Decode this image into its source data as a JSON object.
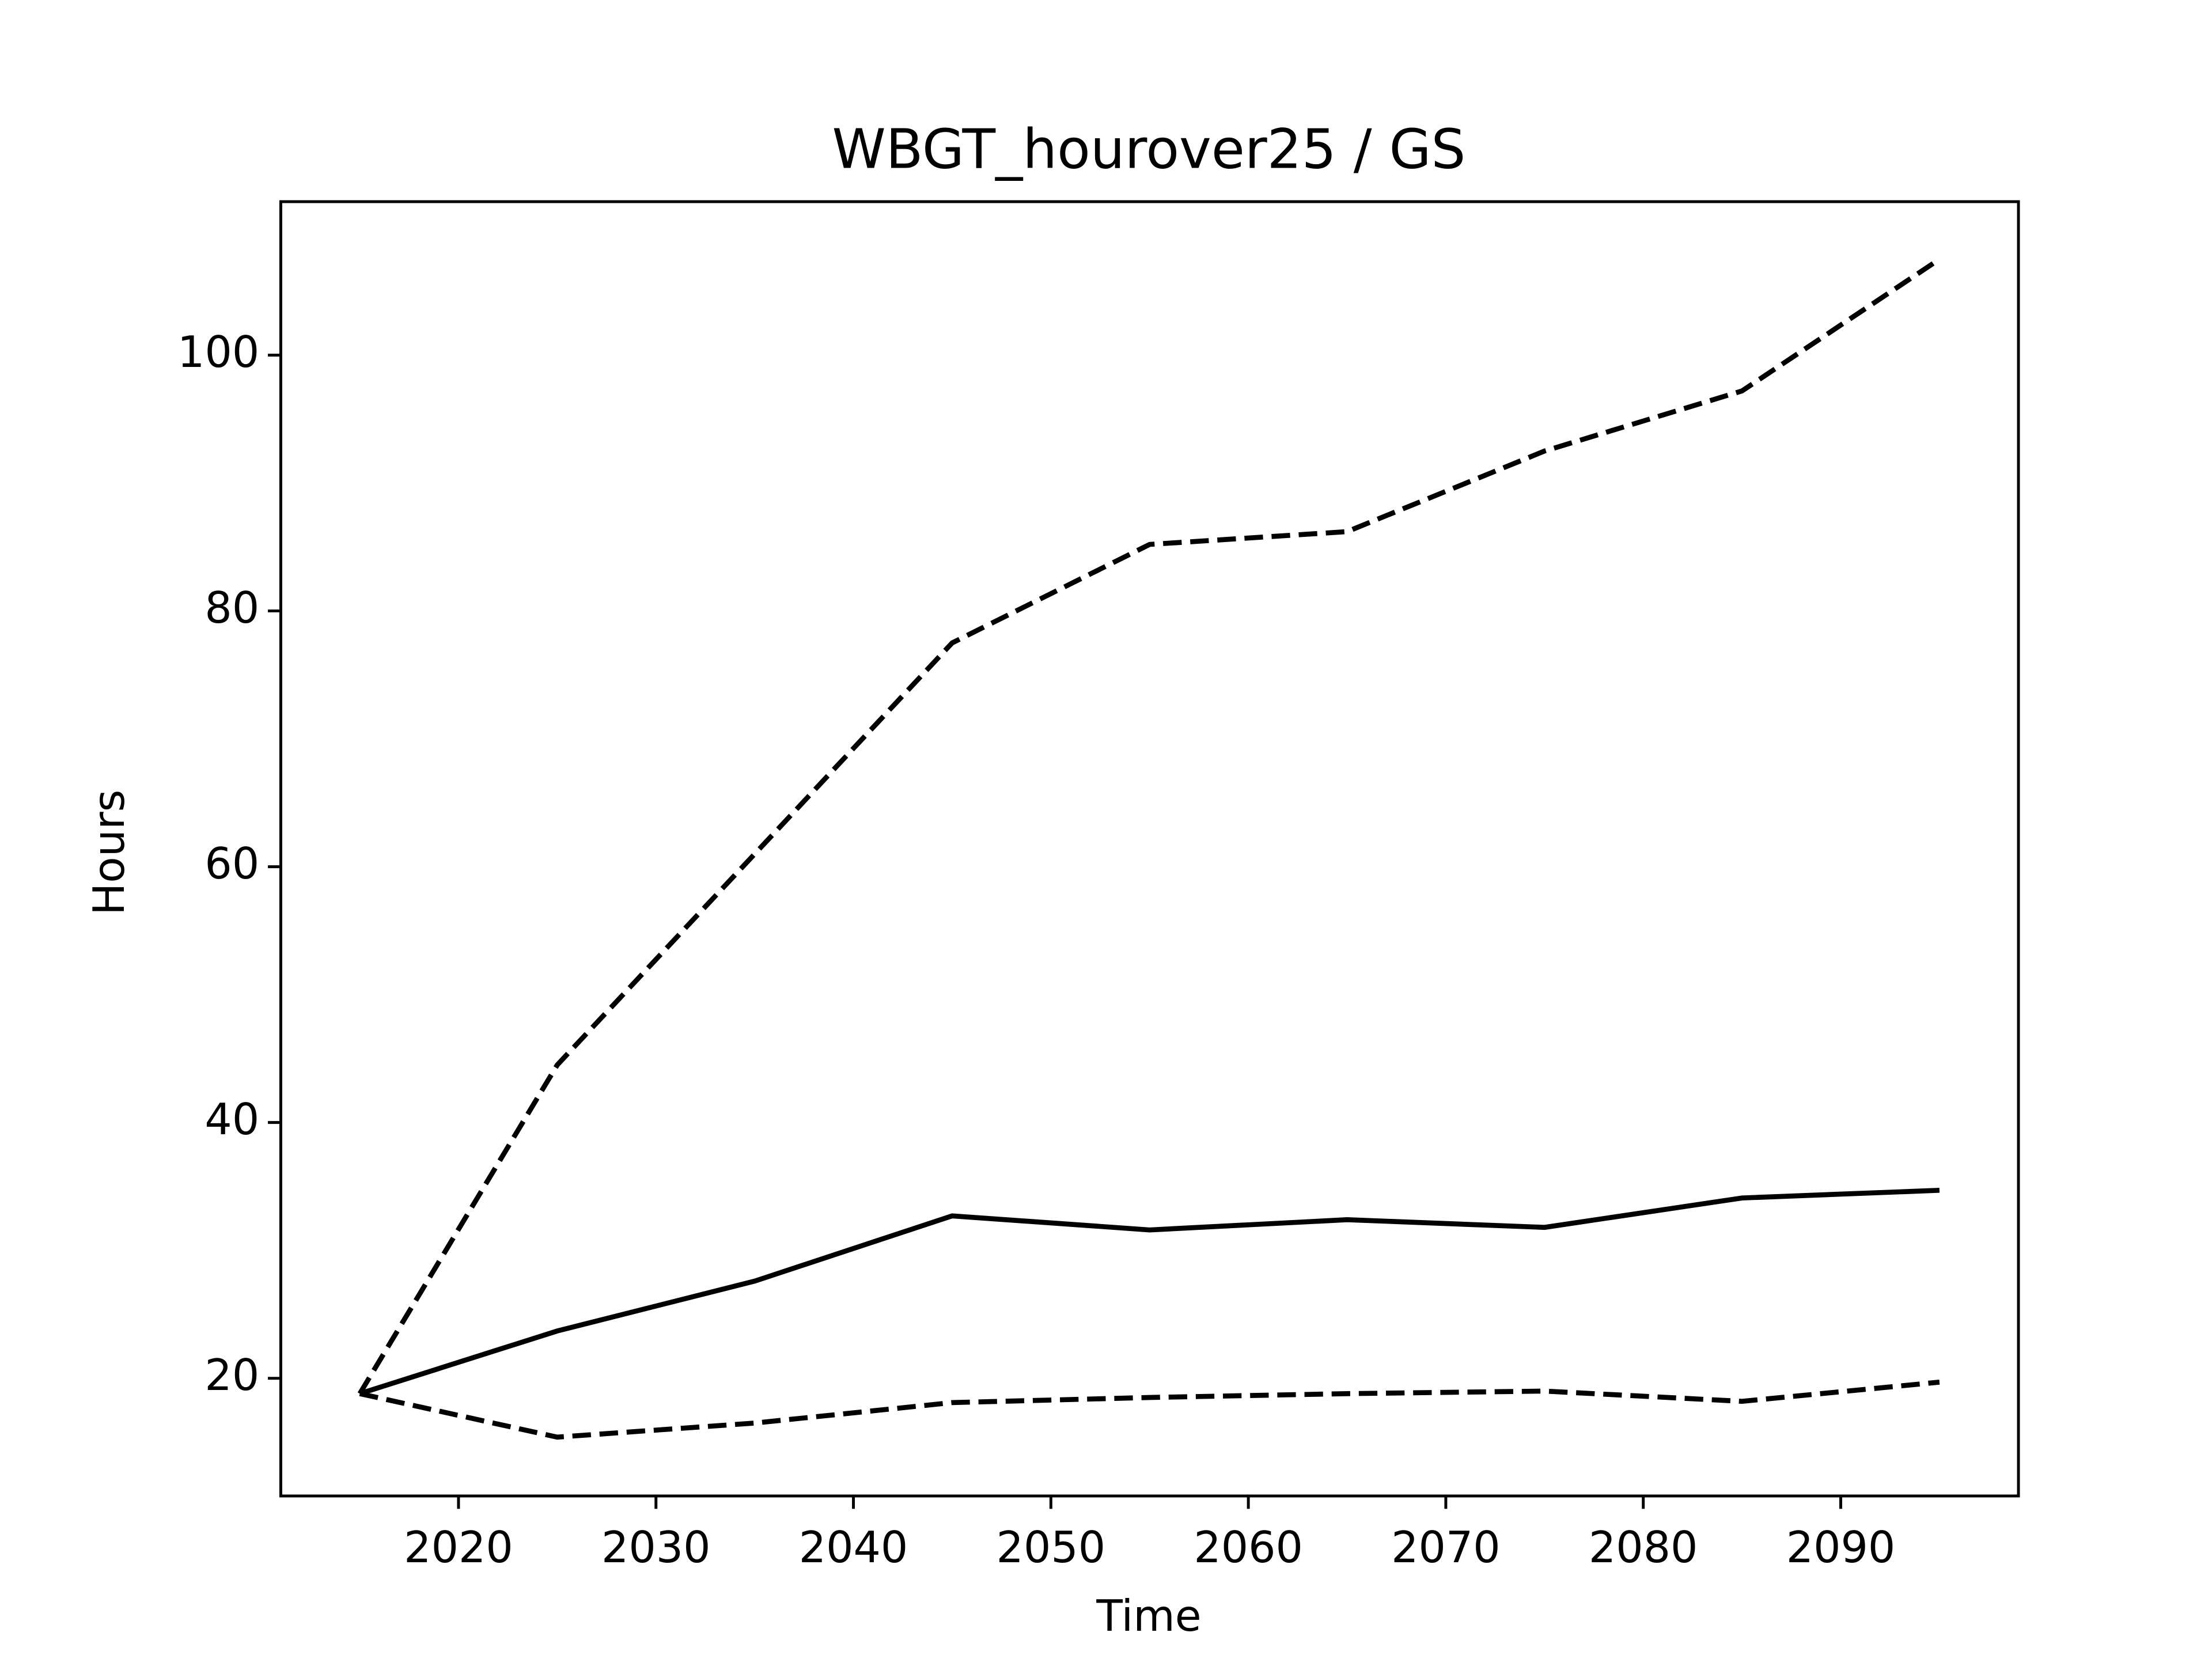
{
  "chart_data": {
    "type": "line",
    "title": "WBGT_hourover25 / GS",
    "xlabel": "Time",
    "ylabel": "Hours",
    "x": [
      2015,
      2025,
      2035,
      2045,
      2055,
      2065,
      2075,
      2085,
      2095
    ],
    "series": [
      {
        "color": "#000000",
        "style": "dashed",
        "values": [
          18.8,
          44.5,
          61,
          77.5,
          85.2,
          86.2,
          92.5,
          97.2,
          107.5
        ]
      },
      {
        "color": "#000000",
        "style": "solid",
        "values": [
          18.8,
          23.7,
          27.6,
          32.7,
          31.6,
          32.4,
          31.8,
          34.1,
          34.7
        ]
      },
      {
        "color": "#000000",
        "style": "dashed",
        "values": [
          18.8,
          15.4,
          16.5,
          18.1,
          18.5,
          18.8,
          19.0,
          18.2,
          19.7
        ]
      }
    ],
    "xlim": [
      2011,
      2099
    ],
    "xticks": [
      2020,
      2030,
      2040,
      2050,
      2060,
      2070,
      2080,
      2090
    ],
    "ylim": [
      10.8,
      112
    ],
    "yticks": [
      20,
      40,
      60,
      80,
      100
    ],
    "grid": false
  }
}
